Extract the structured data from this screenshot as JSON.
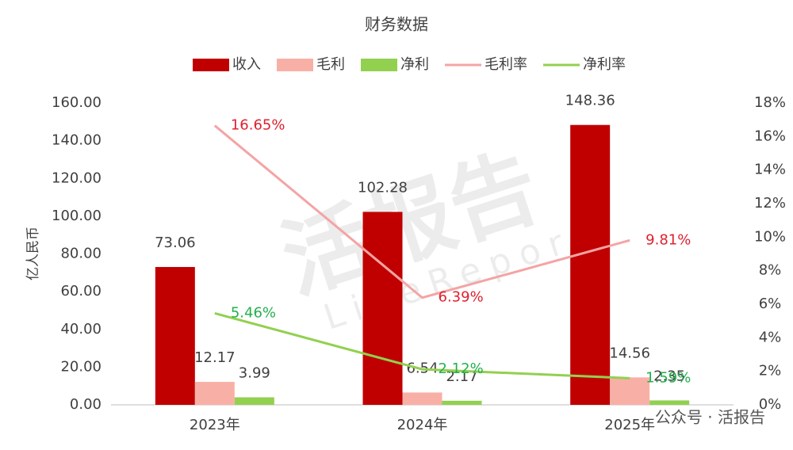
{
  "chart_data": {
    "type": "bar_line",
    "title": "财务数据",
    "y_label": "亿人民币",
    "categories": [
      "2023年",
      "2024年",
      "2025年"
    ],
    "series": [
      {
        "name": "收入",
        "type": "bar",
        "color": "#c00000",
        "values": [
          73.06,
          102.28,
          148.36
        ]
      },
      {
        "name": "毛利",
        "type": "bar",
        "color": "#f8b0a6",
        "values": [
          12.17,
          6.54,
          14.56
        ]
      },
      {
        "name": "净利",
        "type": "bar",
        "color": "#92d050",
        "values": [
          3.99,
          2.17,
          2.35
        ]
      },
      {
        "name": "毛利率",
        "type": "line",
        "axis": "y2",
        "color": "#f4a4a4",
        "label_color": "#e0202e",
        "values": [
          16.65,
          6.39,
          9.81
        ],
        "value_labels": [
          "16.65%",
          "6.39%",
          "9.81%"
        ]
      },
      {
        "name": "净利率",
        "type": "line",
        "axis": "y2",
        "color": "#92d050",
        "label_color": "#22b14c",
        "values": [
          5.46,
          2.12,
          1.59
        ],
        "value_labels": [
          "5.46%",
          "2.12%",
          "1.59%"
        ]
      }
    ],
    "ylim": [
      0,
      160
    ],
    "yticks": [
      {
        "value": 0,
        "label": "0.00"
      },
      {
        "value": 20,
        "label": "20.00"
      },
      {
        "value": 40,
        "label": "40.00"
      },
      {
        "value": 60,
        "label": "60.00"
      },
      {
        "value": 80,
        "label": "80.00"
      },
      {
        "value": 100,
        "label": "100.00"
      },
      {
        "value": 120,
        "label": "120.00"
      },
      {
        "value": 140,
        "label": "140.00"
      },
      {
        "value": 160,
        "label": "160.00"
      }
    ],
    "y2lim": [
      0,
      18
    ],
    "y2ticks": [
      {
        "value": 0,
        "label": "0%"
      },
      {
        "value": 2,
        "label": "2%"
      },
      {
        "value": 4,
        "label": "4%"
      },
      {
        "value": 6,
        "label": "6%"
      },
      {
        "value": 8,
        "label": "8%"
      },
      {
        "value": 10,
        "label": "10%"
      },
      {
        "value": 12,
        "label": "12%"
      },
      {
        "value": 14,
        "label": "14%"
      },
      {
        "value": 16,
        "label": "16%"
      },
      {
        "value": 18,
        "label": "18%"
      }
    ],
    "legend": "top",
    "watermark": "活报告",
    "watermark_sub": "LiveReport",
    "footer": "公众号 · 活报告"
  }
}
